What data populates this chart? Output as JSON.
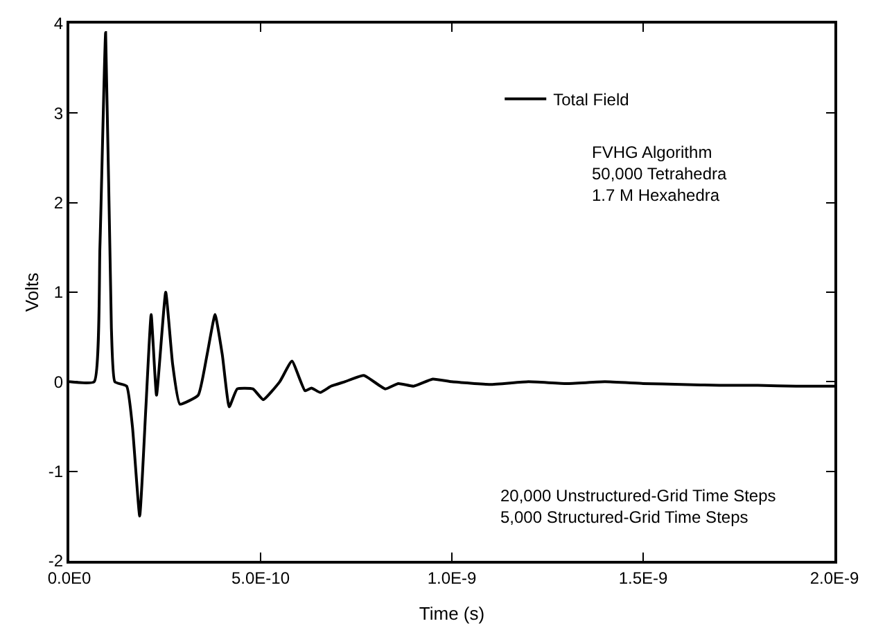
{
  "chart_data": {
    "type": "line",
    "xlabel": "Time (s)",
    "ylabel": "Volts",
    "x": [
      0,
      6.5e-11,
      8e-11,
      9.5e-11,
      1.1e-10,
      1.19e-10,
      1.5e-10,
      1.65e-10,
      1.84e-10,
      2e-10,
      2.14e-10,
      2.28e-10,
      2.52e-10,
      2.7e-10,
      2.89e-10,
      3.37e-10,
      3.6e-10,
      3.81e-10,
      4e-10,
      4.18e-10,
      4.39e-10,
      4.8e-10,
      5.07e-10,
      5.5e-10,
      5.82e-10,
      6.16e-10,
      6.33e-10,
      6.56e-10,
      6.84e-10,
      7.2e-10,
      7.7e-10,
      8.26e-10,
      8.6e-10,
      9e-10,
      9.5e-10,
      1e-09,
      1.1e-09,
      1.2e-09,
      1.3e-09,
      1.4e-09,
      1.5e-09,
      1.6e-09,
      1.7e-09,
      1.8e-09,
      1.9e-09,
      2e-09
    ],
    "series": [
      {
        "name": "Total Field",
        "color": "#000000",
        "values": [
          0,
          0,
          1.5,
          3.9,
          0.6,
          0,
          -0.05,
          -0.5,
          -1.5,
          -0.3,
          0.75,
          -0.15,
          1.0,
          0.2,
          -0.25,
          -0.15,
          0.3,
          0.75,
          0.3,
          -0.28,
          -0.08,
          -0.08,
          -0.2,
          0,
          0.23,
          -0.1,
          -0.07,
          -0.12,
          -0.05,
          0,
          0.07,
          -0.08,
          -0.02,
          -0.05,
          0.03,
          0,
          -0.03,
          0,
          -0.02,
          0,
          -0.02,
          -0.03,
          -0.04,
          -0.04,
          -0.05,
          -0.05
        ]
      }
    ],
    "xlim": [
      0,
      2e-09
    ],
    "xticks": [
      {
        "value": 0,
        "label": "0.0E0"
      },
      {
        "value": 5e-10,
        "label": "5.0E-10"
      },
      {
        "value": 1e-09,
        "label": "1.0E-9"
      },
      {
        "value": 1.5e-09,
        "label": "1.5E-9"
      },
      {
        "value": 2e-09,
        "label": "2.0E-9"
      }
    ],
    "ylim": [
      -2,
      4
    ],
    "yticks": [
      -2,
      -1,
      0,
      1,
      2,
      3,
      4
    ],
    "legend": "top right",
    "marker": "none",
    "line_style": "solid",
    "annotations": [
      "FVHG Algorithm\n50,000 Tetrahedra\n1.7 M Hexahedra",
      "20,000 Unstructured-Grid Time Steps\n5,000 Structured-Grid Time Steps"
    ]
  }
}
